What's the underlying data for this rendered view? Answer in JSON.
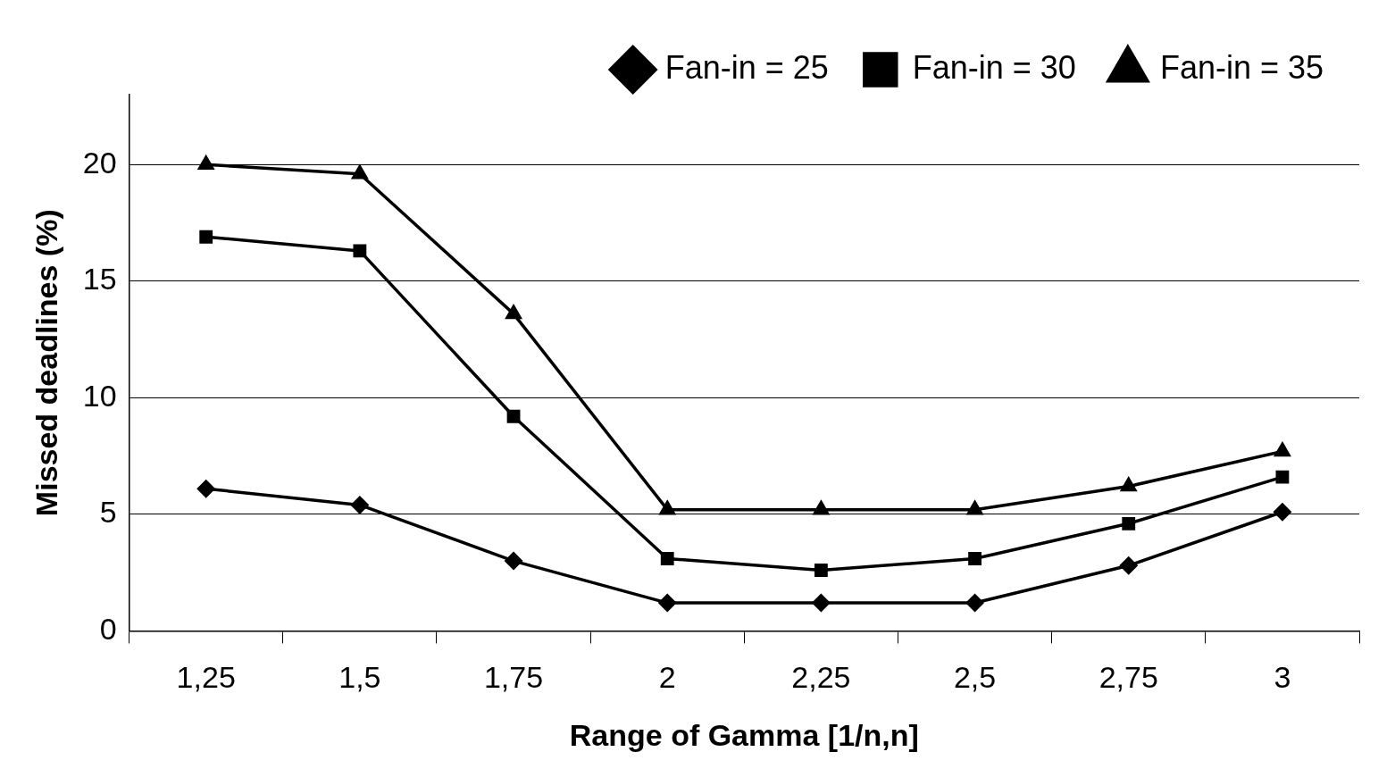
{
  "chart_data": {
    "type": "line",
    "xlabel": "Range of Gamma [1/n,n]",
    "ylabel": "Missed deadlines (%)",
    "categories": [
      "1,25",
      "1,5",
      "1,75",
      "2",
      "2,25",
      "2,5",
      "2,75",
      "3"
    ],
    "series": [
      {
        "name": "Fan-in = 25",
        "color": "#000000",
        "marker": "diamond",
        "values": [
          6.1,
          5.4,
          3.0,
          1.2,
          1.2,
          1.2,
          2.8,
          5.1
        ]
      },
      {
        "name": "Fan-in = 30",
        "color": "#000000",
        "marker": "square",
        "values": [
          16.9,
          16.3,
          9.2,
          3.1,
          2.6,
          3.1,
          4.6,
          6.6
        ]
      },
      {
        "name": "Fan-in = 35",
        "color": "#000000",
        "marker": "triangle",
        "values": [
          20.0,
          19.6,
          13.6,
          5.2,
          5.2,
          5.2,
          6.2,
          7.7
        ]
      }
    ],
    "ylim": [
      0,
      23
    ],
    "yticks": [
      0,
      5,
      10,
      15,
      20
    ],
    "grid": "y",
    "legend": "top",
    "line_style": "solid"
  }
}
